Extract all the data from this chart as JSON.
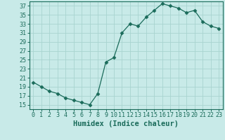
{
  "x": [
    0,
    1,
    2,
    3,
    4,
    5,
    6,
    7,
    8,
    9,
    10,
    11,
    12,
    13,
    14,
    15,
    16,
    17,
    18,
    19,
    20,
    21,
    22,
    23
  ],
  "y": [
    20.0,
    19.0,
    18.0,
    17.5,
    16.5,
    16.0,
    15.5,
    15.0,
    17.5,
    24.5,
    25.5,
    31.0,
    33.0,
    32.5,
    34.5,
    36.0,
    37.5,
    37.0,
    36.5,
    35.5,
    36.0,
    33.5,
    32.5,
    32.0
  ],
  "line_color": "#1a6b5a",
  "marker": "D",
  "marker_size": 2.5,
  "bg_color": "#c8eae8",
  "grid_color": "#a8d4d0",
  "xlabel": "Humidex (Indice chaleur)",
  "xlim": [
    -0.5,
    23.5
  ],
  "ylim": [
    14,
    38
  ],
  "yticks": [
    15,
    17,
    19,
    21,
    23,
    25,
    27,
    29,
    31,
    33,
    35,
    37
  ],
  "xticks": [
    0,
    1,
    2,
    3,
    4,
    5,
    6,
    7,
    8,
    9,
    10,
    11,
    12,
    13,
    14,
    15,
    16,
    17,
    18,
    19,
    20,
    21,
    22,
    23
  ],
  "tick_color": "#1a6b5a",
  "xlabel_fontsize": 7.5,
  "tick_fontsize": 6.0,
  "spine_color": "#1a6b5a"
}
